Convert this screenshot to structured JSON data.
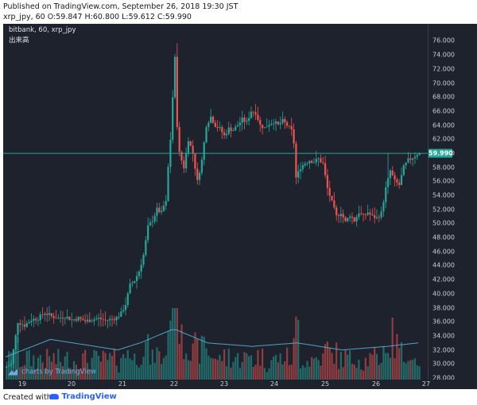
{
  "header": {
    "published": "Published on TradingView.com, September 26, 2018 19:30 JST",
    "ohlc": "xrp_jpy, 60 O:59.847 H:60.800 L:59.612 C:59.990"
  },
  "chart": {
    "symbol_label": "bitbank, 60, xrp_jpy",
    "volume_label": "出来高",
    "watermark": "charts by TradingView",
    "last_price_label": "59.990",
    "colors": {
      "up": "#26a69a",
      "down": "#ef5350",
      "background": "#1e222d",
      "ma": "#4fa3c7"
    }
  },
  "footer": {
    "created": "Created with",
    "brand": "TradingView"
  },
  "chart_data": {
    "type": "candlestick",
    "y_ticks": [
      "76.000",
      "74.000",
      "72.000",
      "70.000",
      "68.000",
      "66.000",
      "64.000",
      "62.000",
      "60.000",
      "58.000",
      "56.000",
      "54.000",
      "52.000",
      "50.000",
      "48.000",
      "46.000",
      "44.000",
      "42.000",
      "40.000",
      "38.000",
      "36.000",
      "34.000",
      "32.000",
      "30.000",
      "28.000"
    ],
    "x_ticks": [
      "19",
      "20",
      "21",
      "22",
      "23",
      "24",
      "25",
      "26",
      "27"
    ],
    "ylim": [
      28,
      77.3
    ],
    "last_price": 59.99,
    "price_path": [
      [
        0,
        29.5
      ],
      [
        3,
        30
      ],
      [
        6,
        36
      ],
      [
        9,
        35.5
      ],
      [
        12,
        36.3
      ],
      [
        15,
        36.5
      ],
      [
        18,
        37.3
      ],
      [
        21,
        36.8
      ],
      [
        24,
        36.5
      ],
      [
        27,
        36.8
      ],
      [
        30,
        36.3
      ],
      [
        33,
        36.5
      ],
      [
        36,
        36.1
      ],
      [
        39,
        36.3
      ],
      [
        42,
        36.5
      ],
      [
        45,
        36.2
      ],
      [
        48,
        36.4
      ],
      [
        50,
        36.6
      ],
      [
        52,
        37.2
      ],
      [
        54,
        38.5
      ],
      [
        56,
        41.2
      ],
      [
        58,
        41.9
      ],
      [
        60,
        43.2
      ],
      [
        62,
        45.5
      ],
      [
        64,
        49.5
      ],
      [
        66,
        50.5
      ],
      [
        68,
        52
      ],
      [
        70,
        51.5
      ],
      [
        71,
        52.5
      ],
      [
        72,
        53
      ],
      [
        73,
        58
      ],
      [
        74,
        62
      ],
      [
        75,
        68
      ],
      [
        76,
        73.5
      ],
      [
        77,
        64
      ],
      [
        78,
        60
      ],
      [
        80,
        58
      ],
      [
        82,
        62
      ],
      [
        84,
        60
      ],
      [
        86,
        56
      ],
      [
        88,
        59
      ],
      [
        90,
        64
      ],
      [
        92,
        65.2
      ],
      [
        94,
        64
      ],
      [
        96,
        63.5
      ],
      [
        98,
        62.5
      ],
      [
        100,
        63.5
      ],
      [
        102,
        63.3
      ],
      [
        104,
        64
      ],
      [
        106,
        64.8
      ],
      [
        108,
        64.4
      ],
      [
        110,
        66
      ],
      [
        112,
        65.8
      ],
      [
        114,
        64
      ],
      [
        116,
        63.6
      ],
      [
        118,
        64.2
      ],
      [
        120,
        64.5
      ],
      [
        122,
        64
      ],
      [
        124,
        64.6
      ],
      [
        126,
        64
      ],
      [
        128,
        63.2
      ],
      [
        129,
        61.5
      ],
      [
        130,
        56.5
      ],
      [
        132,
        58
      ],
      [
        134,
        58.6
      ],
      [
        136,
        59
      ],
      [
        138,
        58.8
      ],
      [
        140,
        59.2
      ],
      [
        142,
        58.5
      ],
      [
        144,
        55
      ],
      [
        146,
        53
      ],
      [
        148,
        51
      ],
      [
        150,
        51.6
      ],
      [
        152,
        50.2
      ],
      [
        154,
        51.2
      ],
      [
        156,
        50.4
      ],
      [
        158,
        51.6
      ],
      [
        160,
        51
      ],
      [
        162,
        51.6
      ],
      [
        164,
        51
      ],
      [
        166,
        50.8
      ],
      [
        168,
        51.5
      ],
      [
        170,
        55
      ],
      [
        172,
        57.5
      ],
      [
        174,
        56
      ],
      [
        176,
        55.5
      ],
      [
        178,
        58
      ],
      [
        180,
        59
      ],
      [
        182,
        59.4
      ],
      [
        184,
        59.9
      ]
    ],
    "volume_ma_profile": [
      [
        0,
        31
      ],
      [
        20,
        33.5
      ],
      [
        50,
        32
      ],
      [
        60,
        33
      ],
      [
        75,
        35
      ],
      [
        90,
        33
      ],
      [
        110,
        32.5
      ],
      [
        130,
        33
      ],
      [
        150,
        32
      ],
      [
        170,
        32.5
      ],
      [
        184,
        33
      ]
    ]
  }
}
